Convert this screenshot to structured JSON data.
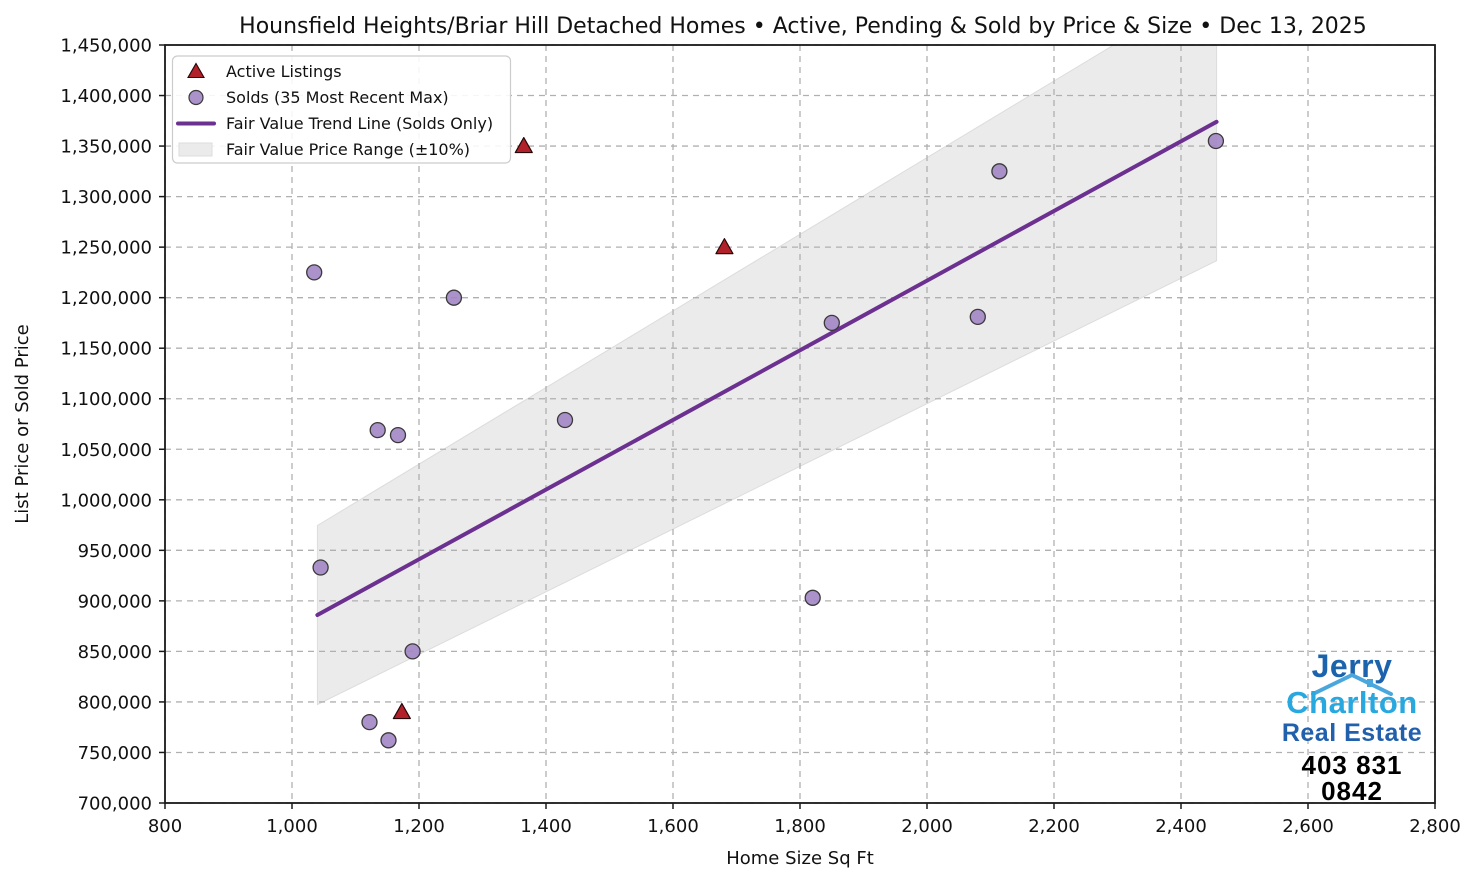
{
  "chart_data": {
    "type": "scatter",
    "title": "Hounsfield Heights/Briar Hill Detached Homes • Active, Pending & Sold by Price & Size • Dec 13, 2025",
    "xlabel": "Home Size Sq Ft",
    "ylabel": "List Price or Sold Price",
    "xlim": [
      800,
      2800
    ],
    "ylim": [
      700000,
      1450000
    ],
    "xticks": [
      800,
      1000,
      1200,
      1400,
      1600,
      1800,
      2000,
      2200,
      2400,
      2600,
      2800
    ],
    "yticks": [
      700000,
      750000,
      800000,
      850000,
      900000,
      950000,
      1000000,
      1050000,
      1100000,
      1150000,
      1200000,
      1250000,
      1300000,
      1350000,
      1400000,
      1450000
    ],
    "grid": "dashed",
    "legend_position": "upper-left",
    "series": [
      {
        "name": "Active Listings",
        "type": "scatter",
        "marker": "triangle",
        "color": "#b2202a",
        "edge_color": "#260709",
        "points": [
          [
            1365,
            1350000
          ],
          [
            1681,
            1250000
          ],
          [
            1173,
            790000
          ]
        ]
      },
      {
        "name": "Solds (35 Most Recent Max)",
        "type": "scatter",
        "marker": "circle",
        "color": "#a286c4",
        "edge_color": "#3a3a3a",
        "points": [
          [
            1035,
            1225000
          ],
          [
            1255,
            1200000
          ],
          [
            1135,
            1069000
          ],
          [
            1167,
            1064000
          ],
          [
            1430,
            1079000
          ],
          [
            1045,
            933000
          ],
          [
            1190,
            850000
          ],
          [
            1122,
            780000
          ],
          [
            1152,
            762000
          ],
          [
            1850,
            1175000
          ],
          [
            1820,
            903000
          ],
          [
            2080,
            1181000
          ],
          [
            2114,
            1325000
          ],
          [
            2455,
            1355000
          ]
        ]
      },
      {
        "name": "Fair Value Trend Line (Solds Only)",
        "type": "line",
        "color": "#6c3190",
        "x": [
          1040,
          2456
        ],
        "y": [
          886000,
          1374000
        ]
      },
      {
        "name": "Fair Value Price Range (±10%)",
        "type": "band",
        "color": "#ebebeb",
        "edge_color": "#dcdcdc",
        "band_pct": 10
      }
    ],
    "style": {
      "spine_color": "#1a1a1a",
      "grid_color": "#b0b0b0",
      "background": "#ffffff"
    }
  },
  "logo": {
    "line1": "Jerry",
    "line2": "Charlton",
    "line3": "Real Estate",
    "phone": "403 831 0842",
    "line1_color": "#1c63ad",
    "line2_color": "#29a8e0",
    "line3_color": "#2060ac",
    "phone_color": "#000000",
    "roof_color": "#4aa7dd"
  }
}
